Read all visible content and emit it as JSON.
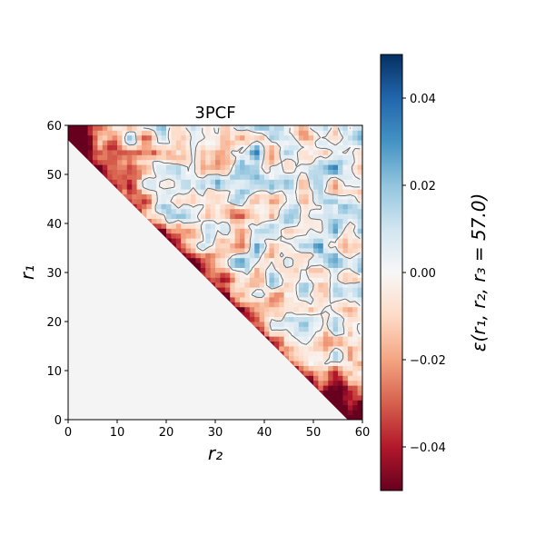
{
  "chart_data": {
    "type": "heatmap",
    "title": "3PCF",
    "xlabel": "r₂",
    "ylabel": "r₁",
    "xlim": [
      0,
      60
    ],
    "ylim": [
      0,
      60
    ],
    "x_ticks": [
      "0",
      "10",
      "20",
      "30",
      "40",
      "50",
      "60"
    ],
    "y_ticks": [
      "0",
      "10",
      "20",
      "30",
      "40",
      "50",
      "60"
    ],
    "colorbar": {
      "label": "ε(r₁, r₂, r₃ = 57.0)",
      "range": [
        -0.05,
        0.05
      ],
      "ticks": [
        "−0.04",
        "−0.02",
        "0.00",
        "0.02",
        "0.04"
      ],
      "tick_values": [
        -0.04,
        -0.02,
        0.0,
        0.02,
        0.04
      ],
      "colormap": "RdBu"
    },
    "masked_region": "r1 + r2 < 57 (lower-left triangle, light grey)",
    "masked_color": "#f4f4f4",
    "contour_color": "#6e6e6e",
    "value_trend": "strongly negative (dark red) along the r1 + r2 = 57 edge and near the corners (0,60) and (60,0); mixed weak positive/negative values in the interior",
    "grid": false
  }
}
